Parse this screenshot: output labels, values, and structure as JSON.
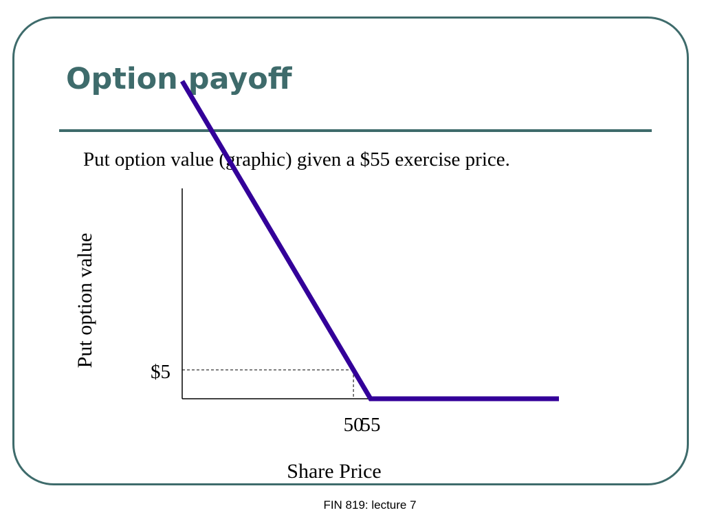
{
  "slide": {
    "title": "Option payoff",
    "subtitle": "Put option value (graphic) given a $55 exercise price.",
    "footer": "FIN 819: lecture 7"
  },
  "colors": {
    "accent": "#3e6b6b",
    "payoff_line": "#330099"
  },
  "chart_data": {
    "type": "line",
    "xlabel": "Share Price",
    "ylabel": "Put option value",
    "exercise_price": 55,
    "x_ticks": [
      {
        "value": 50,
        "label": "50"
      },
      {
        "value": 55,
        "label": "55"
      }
    ],
    "y_ticks": [
      {
        "value": 5,
        "label": "$5"
      }
    ],
    "series": [
      {
        "points": [
          {
            "x": 0,
            "y": 55
          },
          {
            "x": 55,
            "y": 0
          },
          {
            "x": 110,
            "y": 0
          }
        ]
      }
    ],
    "reference_point": {
      "x": 50,
      "y": 5
    },
    "xlim": [
      0,
      110
    ],
    "ylim": [
      0,
      60
    ],
    "grid": false
  }
}
